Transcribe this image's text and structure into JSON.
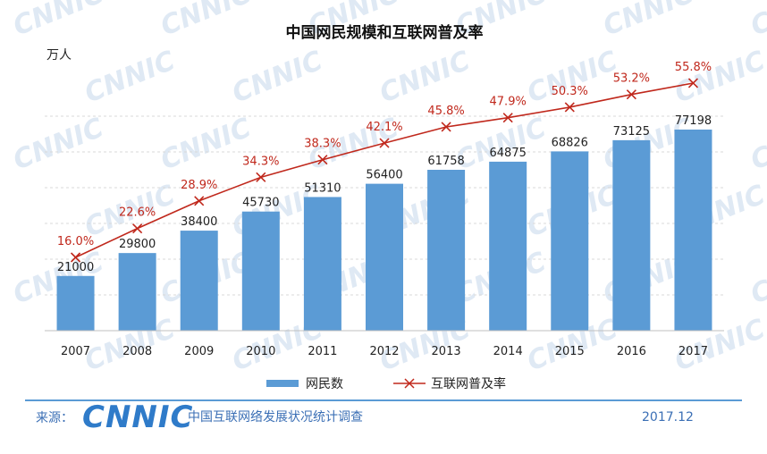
{
  "chart_data": {
    "type": "bar",
    "title": "中国网民规模和互联网普及率",
    "ylabel": "万人",
    "xlabel": "",
    "ylim": [
      0,
      100000
    ],
    "categories": [
      "2007",
      "2008",
      "2009",
      "2010",
      "2011",
      "2012",
      "2013",
      "2014",
      "2015",
      "2016",
      "2017"
    ],
    "series": [
      {
        "name": "网民数",
        "kind": "bar",
        "color": "#5b9bd5",
        "values": [
          21000,
          29800,
          38400,
          45730,
          51310,
          56400,
          61758,
          64875,
          68826,
          73125,
          77198
        ]
      },
      {
        "name": "互联网普及率",
        "kind": "line",
        "color": "#c0281c",
        "unit": "%",
        "values": [
          16.0,
          22.6,
          28.9,
          34.3,
          38.3,
          42.1,
          45.8,
          47.9,
          50.3,
          53.2,
          55.8
        ]
      }
    ],
    "value_labels": [
      "21000",
      "29800",
      "38400",
      "45730",
      "51310",
      "56400",
      "61758",
      "64875",
      "68826",
      "73125",
      "77198"
    ],
    "pct_labels": [
      "16.0%",
      "22.6%",
      "28.9%",
      "34.3%",
      "38.3%",
      "42.1%",
      "45.8%",
      "47.9%",
      "50.3%",
      "53.2%",
      "55.8%"
    ],
    "legend": {
      "position": "bottom",
      "bar_label": "网民数",
      "line_label": "互联网普及率"
    },
    "grid": true
  },
  "footer": {
    "source_label": "来源：",
    "logo": "CNNIC",
    "survey": "中国互联网络发展状况统计调查",
    "date": "2017.12"
  },
  "watermark": "CNNIC",
  "colors": {
    "bar": "#5b9bd5",
    "line": "#c0281c",
    "footer_rule": "#5b9bd5",
    "logo": "#2f7bc9"
  }
}
